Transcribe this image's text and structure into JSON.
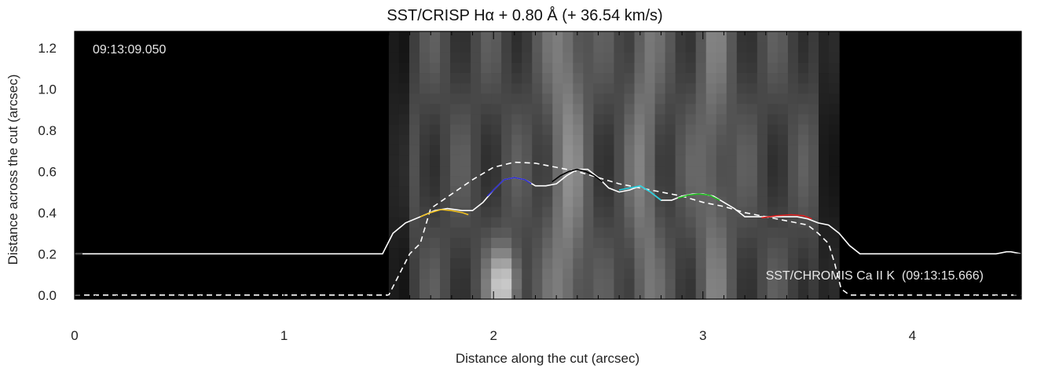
{
  "chart_data": {
    "type": "line",
    "title": "SST/CRISP Hα + 0.80 Å (+ 36.54 km/s)",
    "xlabel": "Distance along the cut (arcsec)",
    "ylabel": "Distance across the cut (arcsec)",
    "xlim": [
      0,
      4.52
    ],
    "ylim": [
      -0.02,
      1.28
    ],
    "xticks": [
      0,
      1,
      2,
      3,
      4
    ],
    "xtick_labels": [
      "0",
      "1",
      "2",
      "3",
      "4"
    ],
    "yticks": [
      0.0,
      0.2,
      0.4,
      0.6,
      0.8,
      1.0,
      1.2
    ],
    "ytick_labels": [
      "0.0",
      "0.2",
      "0.4",
      "0.6",
      "0.8",
      "1.0",
      "1.2"
    ],
    "background_image": "grayscale intensity map (nonzero between x=1.50 and x=3.65 arcsec)",
    "annotations": {
      "timestamp": "09:13:09.050",
      "chromis_label": "SST/CHROMIS Ca II K  (09:13:15.666)"
    },
    "series": [
      {
        "style": "solid",
        "color": "#ffffff",
        "x": [
          0,
          1.47,
          1.52,
          1.58,
          1.65,
          1.72,
          1.78,
          1.85,
          1.9,
          1.95,
          2.0,
          2.05,
          2.1,
          2.15,
          2.2,
          2.25,
          2.3,
          2.35,
          2.4,
          2.45,
          2.5,
          2.55,
          2.6,
          2.65,
          2.7,
          2.75,
          2.8,
          2.85,
          2.9,
          2.95,
          3.0,
          3.05,
          3.1,
          3.15,
          3.2,
          3.25,
          3.3,
          3.35,
          3.4,
          3.45,
          3.5,
          3.55,
          3.6,
          3.65,
          3.7,
          3.75,
          4.4,
          4.45,
          4.47,
          4.52
        ],
        "y": [
          0.2,
          0.2,
          0.3,
          0.35,
          0.38,
          0.41,
          0.42,
          0.41,
          0.41,
          0.45,
          0.51,
          0.56,
          0.57,
          0.56,
          0.53,
          0.53,
          0.54,
          0.58,
          0.61,
          0.61,
          0.57,
          0.52,
          0.5,
          0.51,
          0.53,
          0.5,
          0.46,
          0.46,
          0.48,
          0.49,
          0.49,
          0.48,
          0.45,
          0.42,
          0.38,
          0.38,
          0.38,
          0.38,
          0.38,
          0.38,
          0.37,
          0.35,
          0.34,
          0.3,
          0.24,
          0.2,
          0.2,
          0.21,
          0.21,
          0.2
        ]
      },
      {
        "style": "dashed",
        "color": "#ffffff",
        "x": [
          0,
          1.5,
          1.55,
          1.6,
          1.65,
          1.7,
          1.8,
          1.9,
          2.0,
          2.1,
          2.2,
          2.3,
          2.4,
          2.5,
          2.6,
          2.7,
          2.8,
          2.9,
          3.0,
          3.1,
          3.2,
          3.3,
          3.4,
          3.5,
          3.55,
          3.6,
          3.63,
          3.66,
          3.7,
          4.52
        ],
        "y": [
          0.0,
          0.0,
          0.1,
          0.2,
          0.25,
          0.42,
          0.49,
          0.56,
          0.62,
          0.645,
          0.64,
          0.62,
          0.6,
          0.57,
          0.54,
          0.52,
          0.5,
          0.48,
          0.45,
          0.43,
          0.4,
          0.38,
          0.36,
          0.34,
          0.3,
          0.25,
          0.15,
          0.03,
          0.0,
          0.0
        ]
      },
      {
        "style": "solid",
        "color": "#f0c020",
        "x": [
          1.65,
          1.7,
          1.75,
          1.8,
          1.85,
          1.88
        ],
        "y": [
          0.38,
          0.4,
          0.415,
          0.41,
          0.4,
          0.39
        ]
      },
      {
        "style": "solid",
        "color": "#3030d0",
        "x": [
          1.97,
          2.0,
          2.05,
          2.1,
          2.15,
          2.18
        ],
        "y": [
          0.48,
          0.51,
          0.56,
          0.57,
          0.56,
          0.54
        ]
      },
      {
        "style": "solid",
        "color": "#000000",
        "x": [
          2.28,
          2.32,
          2.36,
          2.4,
          2.44,
          2.48,
          2.52
        ],
        "y": [
          0.55,
          0.58,
          0.6,
          0.61,
          0.6,
          0.58,
          0.55
        ]
      },
      {
        "style": "solid",
        "color": "#20d0e0",
        "x": [
          2.6,
          2.65,
          2.7,
          2.75,
          2.8
        ],
        "y": [
          0.51,
          0.52,
          0.53,
          0.5,
          0.46
        ]
      },
      {
        "style": "solid",
        "color": "#20c020",
        "x": [
          2.88,
          2.93,
          2.98,
          3.03,
          3.08
        ],
        "y": [
          0.47,
          0.485,
          0.49,
          0.485,
          0.46
        ]
      },
      {
        "style": "solid",
        "color": "#e02020",
        "x": [
          3.28,
          3.35,
          3.42,
          3.48,
          3.52
        ],
        "y": [
          0.375,
          0.385,
          0.39,
          0.385,
          0.37
        ]
      }
    ]
  }
}
